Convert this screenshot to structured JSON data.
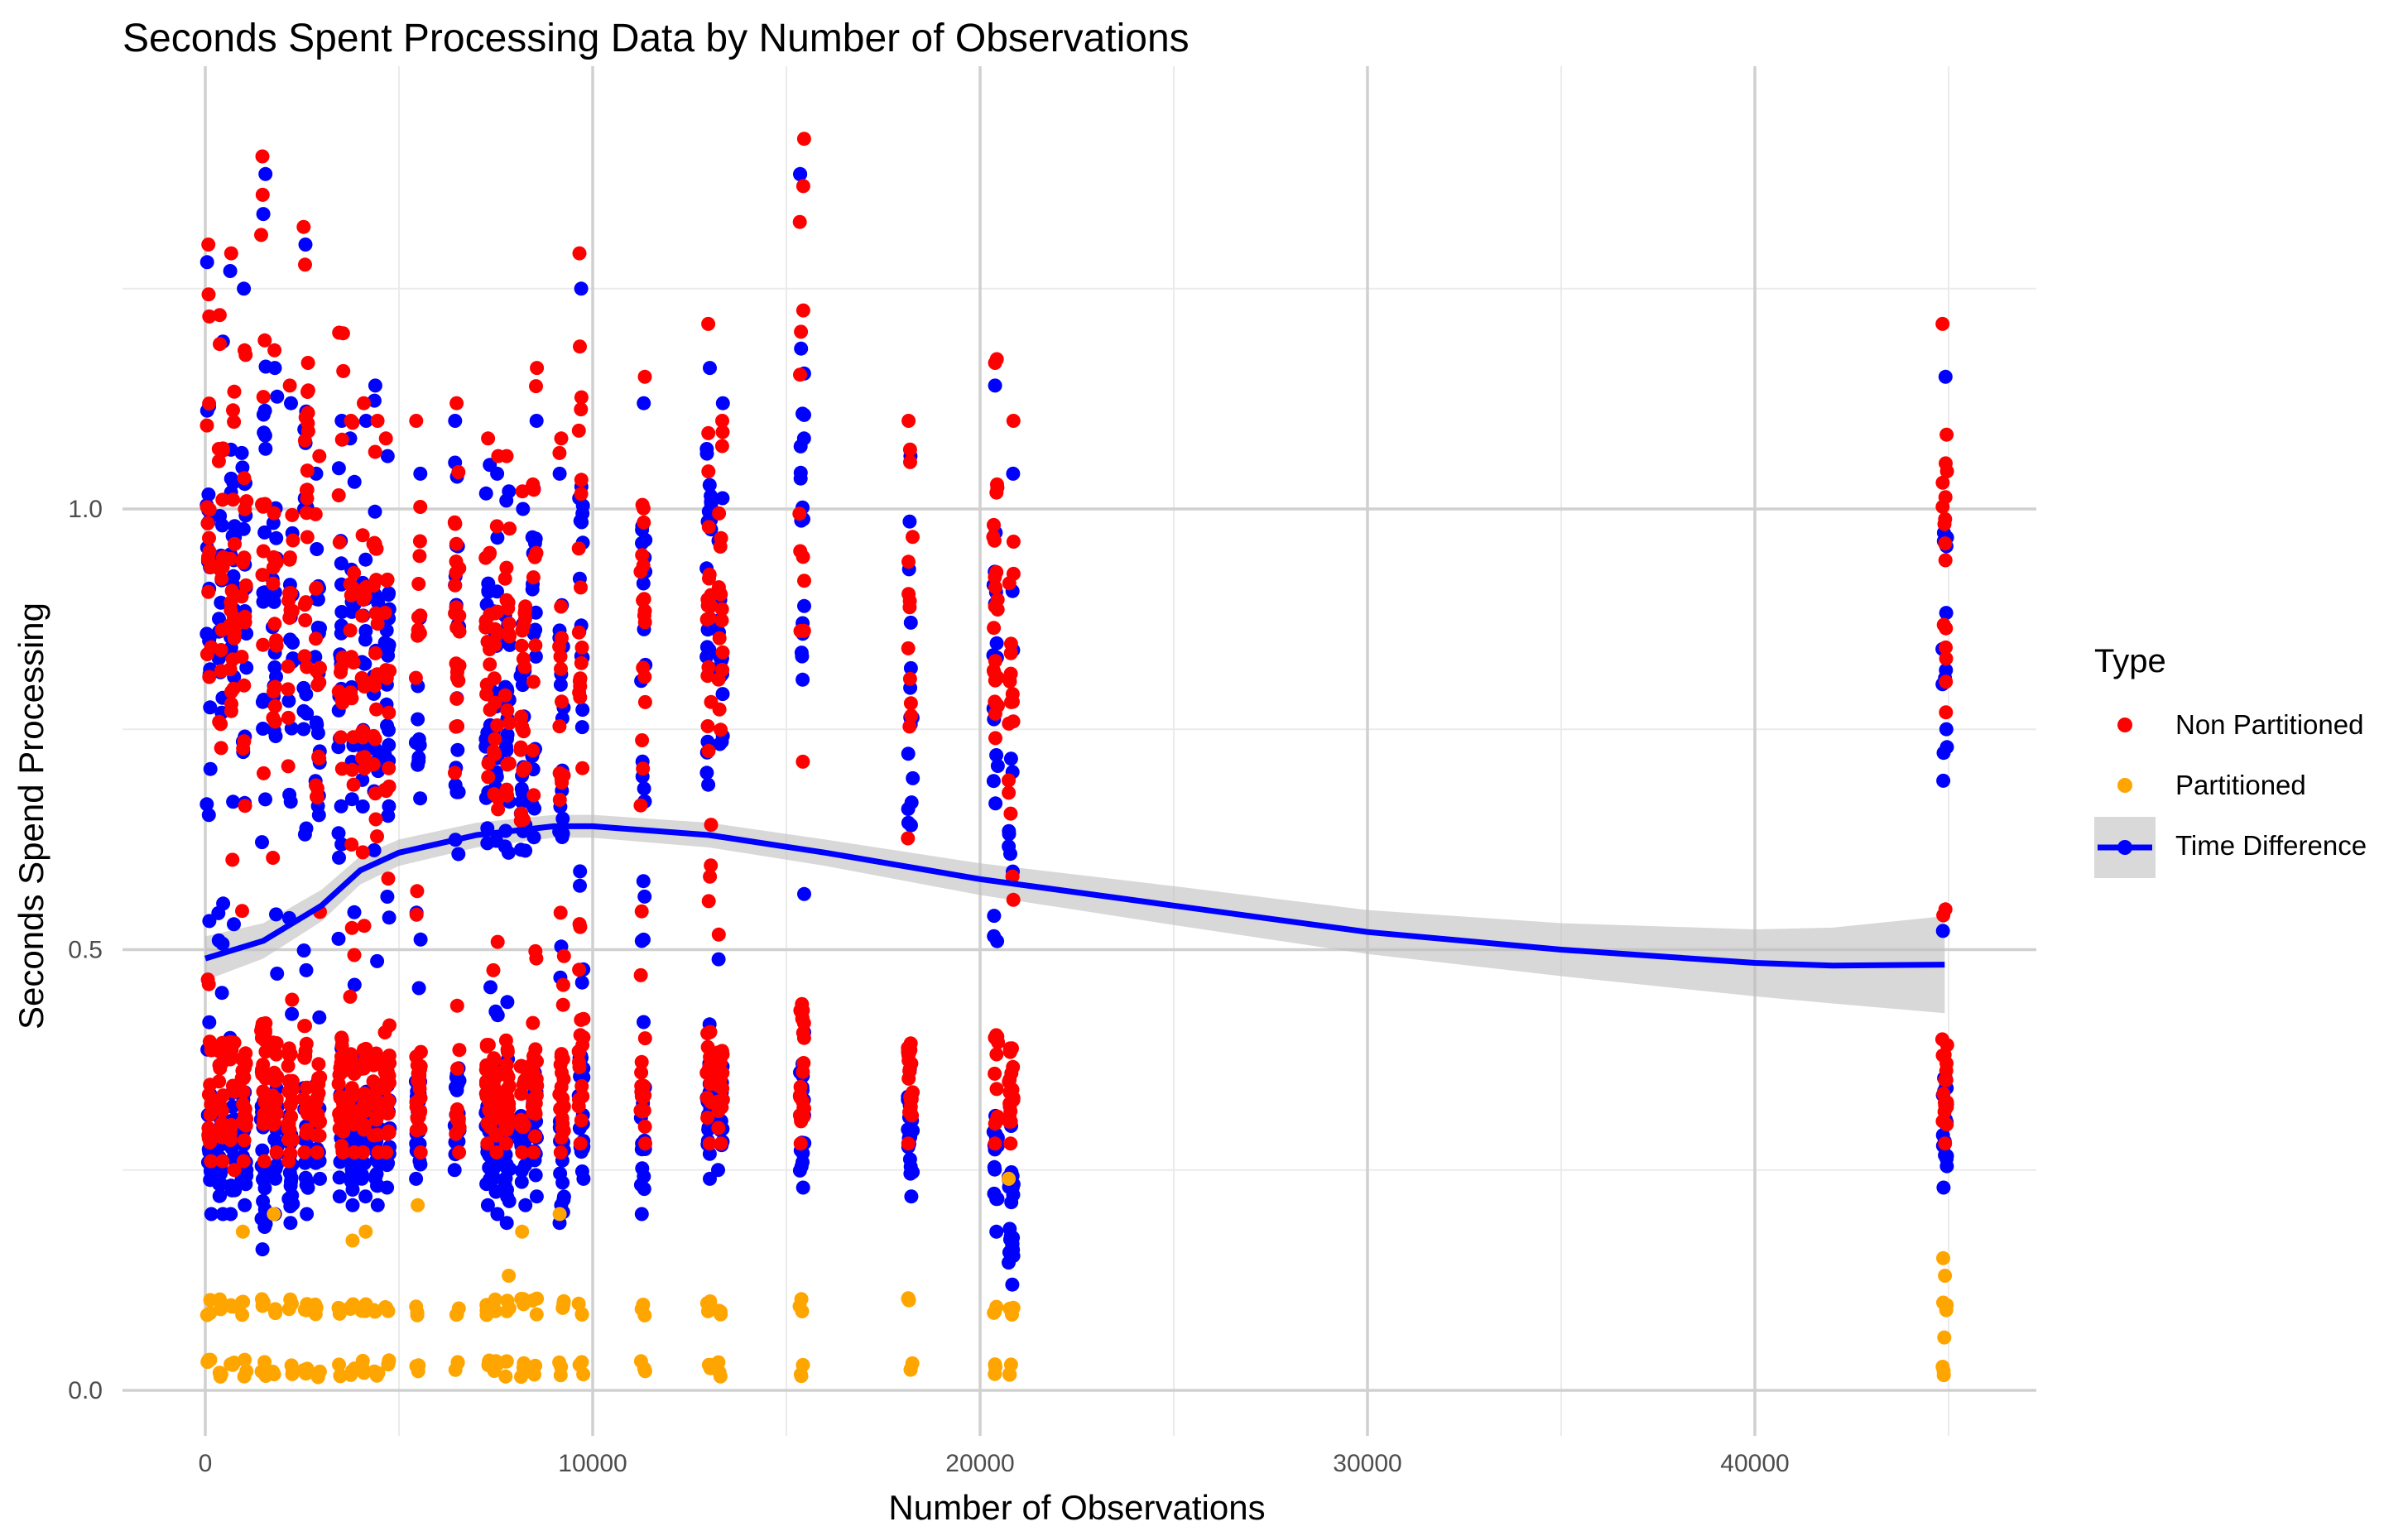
{
  "chart_data": {
    "type": "scatter",
    "title": "Seconds Spent Processing Data by Number of Observations",
    "xlabel": "Number of Observations",
    "ylabel": "Seconds Spend Processing",
    "xlim": [
      -2000,
      47000
    ],
    "ylim": [
      -0.05,
      1.42
    ],
    "x_ticks": [
      0,
      10000,
      20000,
      30000,
      40000
    ],
    "x_tick_labels": [
      "0",
      "10000",
      "20000",
      "30000",
      "40000"
    ],
    "x_minor_ticks": [
      5000,
      15000,
      25000,
      35000,
      45000
    ],
    "y_ticks": [
      0.0,
      0.5,
      1.0
    ],
    "y_tick_labels": [
      "0.0",
      "0.5",
      "1.0"
    ],
    "y_minor_ticks": [
      0.25,
      0.75,
      1.25
    ],
    "grid": true,
    "legend": {
      "title": "Type",
      "position": "right",
      "entries": [
        {
          "label": "Non Partitioned",
          "color": "#ff0000"
        },
        {
          "label": "Partitioned",
          "color": "#ffa500"
        },
        {
          "label": "Time Difference",
          "color": "#0000ff"
        }
      ]
    },
    "x_groups": [
      100,
      400,
      700,
      1000,
      1500,
      1800,
      2200,
      2600,
      2900,
      3500,
      3800,
      4100,
      4400,
      4700,
      5500,
      6500,
      7300,
      7500,
      7800,
      8200,
      8500,
      9200,
      9700,
      11300,
      13000,
      13300,
      15400,
      18200,
      20400,
      20800,
      44900
    ],
    "series": [
      {
        "name": "Non Partitioned",
        "color": "#ff0000",
        "columns": [
          {
            "x": 100,
            "y_min": 0.26,
            "y_max": 1.3
          },
          {
            "x": 400,
            "y_min": 0.26,
            "y_max": 1.22
          },
          {
            "x": 700,
            "y_min": 0.25,
            "y_max": 1.29
          },
          {
            "x": 1000,
            "y_min": 0.26,
            "y_max": 1.18
          },
          {
            "x": 1500,
            "y_min": 0.26,
            "y_max": 1.4
          },
          {
            "x": 1800,
            "y_min": 0.27,
            "y_max": 1.18
          },
          {
            "x": 2200,
            "y_min": 0.26,
            "y_max": 1.14
          },
          {
            "x": 2600,
            "y_min": 0.27,
            "y_max": 1.32
          },
          {
            "x": 2900,
            "y_min": 0.27,
            "y_max": 1.06
          },
          {
            "x": 3500,
            "y_min": 0.27,
            "y_max": 1.2
          },
          {
            "x": 3800,
            "y_min": 0.27,
            "y_max": 1.1
          },
          {
            "x": 4100,
            "y_min": 0.27,
            "y_max": 1.12
          },
          {
            "x": 4400,
            "y_min": 0.27,
            "y_max": 1.1
          },
          {
            "x": 4700,
            "y_min": 0.27,
            "y_max": 1.08
          },
          {
            "x": 5500,
            "y_min": 0.27,
            "y_max": 1.1
          },
          {
            "x": 6500,
            "y_min": 0.27,
            "y_max": 1.12
          },
          {
            "x": 7300,
            "y_min": 0.28,
            "y_max": 1.08
          },
          {
            "x": 7500,
            "y_min": 0.27,
            "y_max": 1.06
          },
          {
            "x": 7800,
            "y_min": 0.28,
            "y_max": 1.06
          },
          {
            "x": 8200,
            "y_min": 0.27,
            "y_max": 1.02
          },
          {
            "x": 8500,
            "y_min": 0.27,
            "y_max": 1.16
          },
          {
            "x": 9200,
            "y_min": 0.27,
            "y_max": 1.08
          },
          {
            "x": 9700,
            "y_min": 0.28,
            "y_max": 1.29
          },
          {
            "x": 11300,
            "y_min": 0.28,
            "y_max": 1.15
          },
          {
            "x": 13000,
            "y_min": 0.28,
            "y_max": 1.21
          },
          {
            "x": 13300,
            "y_min": 0.28,
            "y_max": 1.1
          },
          {
            "x": 15400,
            "y_min": 0.28,
            "y_max": 1.42
          },
          {
            "x": 18200,
            "y_min": 0.28,
            "y_max": 1.1
          },
          {
            "x": 20400,
            "y_min": 0.28,
            "y_max": 1.17
          },
          {
            "x": 20800,
            "y_min": 0.28,
            "y_max": 1.1
          },
          {
            "x": 44900,
            "y_min": 0.28,
            "y_max": 1.21
          }
        ]
      },
      {
        "name": "Partitioned",
        "color": "#ffa500",
        "clusters": [
          {
            "y_min": 0.015,
            "y_max": 0.035
          },
          {
            "y_min": 0.085,
            "y_max": 0.105
          }
        ],
        "outliers": [
          {
            "x": 1000,
            "y": 0.18
          },
          {
            "x": 1800,
            "y": 0.2
          },
          {
            "x": 3800,
            "y": 0.17
          },
          {
            "x": 4100,
            "y": 0.18
          },
          {
            "x": 5500,
            "y": 0.21
          },
          {
            "x": 7800,
            "y": 0.13
          },
          {
            "x": 8200,
            "y": 0.18
          },
          {
            "x": 9200,
            "y": 0.2
          },
          {
            "x": 20800,
            "y": 0.24
          },
          {
            "x": 44900,
            "y": 0.15
          },
          {
            "x": 44900,
            "y": 0.13
          },
          {
            "x": 44900,
            "y": 0.06
          }
        ]
      },
      {
        "name": "Time Difference",
        "color": "#0000ff",
        "columns": [
          {
            "x": 100,
            "y_min": 0.2,
            "y_max": 1.28
          },
          {
            "x": 400,
            "y_min": 0.2,
            "y_max": 1.19
          },
          {
            "x": 700,
            "y_min": 0.2,
            "y_max": 1.27
          },
          {
            "x": 1000,
            "y_min": 0.21,
            "y_max": 1.25
          },
          {
            "x": 1500,
            "y_min": 0.16,
            "y_max": 1.38
          },
          {
            "x": 1800,
            "y_min": 0.2,
            "y_max": 1.16
          },
          {
            "x": 2200,
            "y_min": 0.19,
            "y_max": 1.12
          },
          {
            "x": 2600,
            "y_min": 0.2,
            "y_max": 1.3
          },
          {
            "x": 2900,
            "y_min": 0.24,
            "y_max": 1.04
          },
          {
            "x": 3500,
            "y_min": 0.22,
            "y_max": 1.1
          },
          {
            "x": 3800,
            "y_min": 0.21,
            "y_max": 1.08
          },
          {
            "x": 4100,
            "y_min": 0.22,
            "y_max": 1.1
          },
          {
            "x": 4400,
            "y_min": 0.21,
            "y_max": 1.14
          },
          {
            "x": 4700,
            "y_min": 0.23,
            "y_max": 1.06
          },
          {
            "x": 5500,
            "y_min": 0.24,
            "y_max": 1.04
          },
          {
            "x": 6500,
            "y_min": 0.25,
            "y_max": 1.1
          },
          {
            "x": 7300,
            "y_min": 0.21,
            "y_max": 1.05
          },
          {
            "x": 7500,
            "y_min": 0.2,
            "y_max": 1.04
          },
          {
            "x": 7800,
            "y_min": 0.19,
            "y_max": 1.02
          },
          {
            "x": 8200,
            "y_min": 0.21,
            "y_max": 1.0
          },
          {
            "x": 8500,
            "y_min": 0.22,
            "y_max": 1.1
          },
          {
            "x": 9200,
            "y_min": 0.19,
            "y_max": 1.04
          },
          {
            "x": 9700,
            "y_min": 0.24,
            "y_max": 1.25
          },
          {
            "x": 11300,
            "y_min": 0.2,
            "y_max": 1.12
          },
          {
            "x": 13000,
            "y_min": 0.24,
            "y_max": 1.16
          },
          {
            "x": 13300,
            "y_min": 0.25,
            "y_max": 1.12
          },
          {
            "x": 15400,
            "y_min": 0.23,
            "y_max": 1.38
          },
          {
            "x": 18200,
            "y_min": 0.22,
            "y_max": 1.06
          },
          {
            "x": 20400,
            "y_min": 0.18,
            "y_max": 1.14
          },
          {
            "x": 20800,
            "y_min": 0.12,
            "y_max": 1.04
          },
          {
            "x": 44900,
            "y_min": 0.23,
            "y_max": 1.15
          }
        ]
      }
    ],
    "smooth": {
      "name": "Time Difference",
      "color": "#0000ff",
      "band_color": "#bebebe",
      "x": [
        0,
        1500,
        3000,
        4000,
        5000,
        7000,
        9000,
        10000,
        13000,
        16000,
        20000,
        25000,
        30000,
        35000,
        40000,
        42000,
        44900
      ],
      "y": [
        0.49,
        0.51,
        0.55,
        0.59,
        0.61,
        0.63,
        0.64,
        0.64,
        0.63,
        0.61,
        0.58,
        0.55,
        0.52,
        0.5,
        0.485,
        0.482,
        0.483
      ],
      "se": [
        0.025,
        0.02,
        0.018,
        0.016,
        0.015,
        0.014,
        0.013,
        0.013,
        0.014,
        0.015,
        0.018,
        0.022,
        0.025,
        0.03,
        0.038,
        0.043,
        0.055
      ]
    }
  }
}
